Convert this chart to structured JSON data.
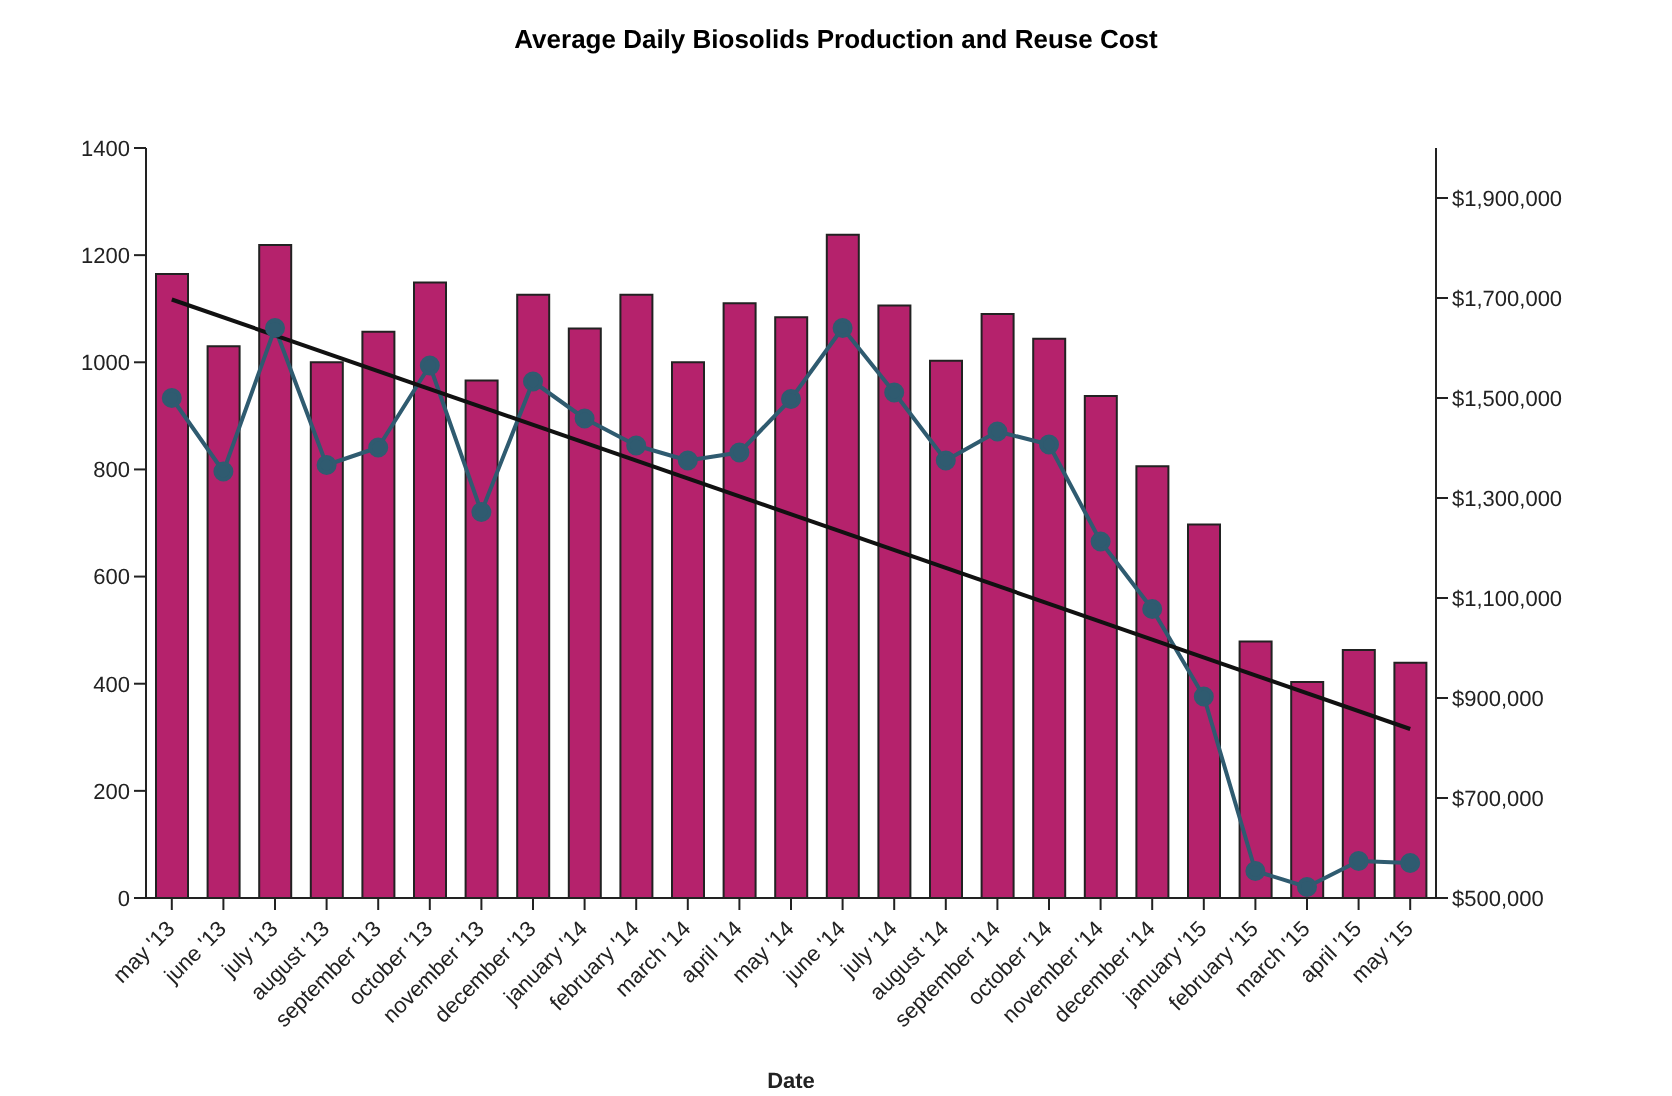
{
  "chart_data": {
    "type": "bar",
    "title": "Average Daily Biosolids Production and Reuse Cost",
    "xlabel": "Date",
    "categories": [
      "may '13",
      "june '13",
      "july '13",
      "august '13",
      "september '13",
      "october '13",
      "november '13",
      "december '13",
      "january '14",
      "february '14",
      "march '14",
      "april '14",
      "may '14",
      "june '14",
      "july '14",
      "august '14",
      "september '14",
      "october '14",
      "november '14",
      "december '14",
      "january '15",
      "february '15",
      "march '15",
      "april '15",
      "may '15"
    ],
    "series": [
      {
        "color": "#b5226c",
        "values": [
          1165,
          1030,
          1219,
          1000,
          1057,
          1149,
          966,
          1126,
          1063,
          1126,
          1000,
          1110,
          1084,
          1238,
          1106,
          1003,
          1090,
          1044,
          937,
          806,
          697,
          479,
          403,
          463,
          439
        ]
      },
      {
        "type": "line",
        "axis": "y2",
        "color": "#2f5b70",
        "marker": "circle",
        "values": [
          1500000,
          1353000,
          1640000,
          1366000,
          1401000,
          1565000,
          1272000,
          1533000,
          1459000,
          1405000,
          1375000,
          1391000,
          1498000,
          1640000,
          1511000,
          1375000,
          1433000,
          1407000,
          1213000,
          1078000,
          903000,
          554000,
          522000,
          574000,
          570000
        ]
      },
      {
        "type": "line",
        "axis": "y2",
        "color": "#111111",
        "marker": "none",
        "x": [
          "may '13",
          "may '15"
        ],
        "values": [
          1697000,
          838000
        ]
      }
    ],
    "ylim": [
      0,
      1400
    ],
    "yticks": [
      0,
      200,
      400,
      600,
      800,
      1000,
      1200,
      1400
    ],
    "y2lim": [
      500000,
      2000000
    ],
    "y2ticks": [
      {
        "value": 500000,
        "label": "$500,000"
      },
      {
        "value": 700000,
        "label": "$700,000"
      },
      {
        "value": 900000,
        "label": "$900,000"
      },
      {
        "value": 1100000,
        "label": "$1,100,000"
      },
      {
        "value": 1300000,
        "label": "$1,300,000"
      },
      {
        "value": 1500000,
        "label": "$1,500,000"
      },
      {
        "value": 1700000,
        "label": "$1,700,000"
      },
      {
        "value": 1900000,
        "label": "$1,900,000"
      }
    ],
    "grid": false,
    "legend": false
  }
}
